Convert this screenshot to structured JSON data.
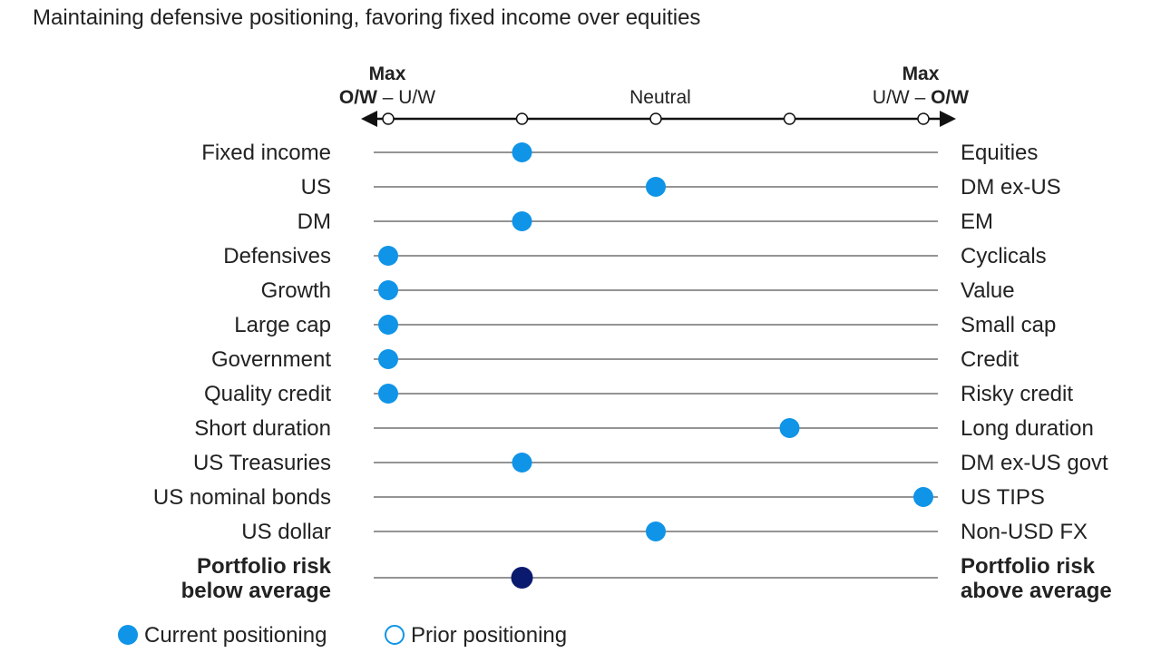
{
  "title": "Maintaining defensive positioning, favoring fixed income over equities",
  "colors": {
    "current": "#0f94e8",
    "current_highlight": "#0a1a6e",
    "prior_fill": "#ffffff",
    "line": "#555555",
    "axis": "#111111",
    "text": "#222222"
  },
  "scale": {
    "left_max": "Max",
    "left_ow": "O/W",
    "left_dash": " – ",
    "left_uw": "U/W",
    "neutral": "Neutral",
    "right_max": "Max",
    "right_uw": "U/W",
    "right_dash": " – ",
    "right_ow": "O/W"
  },
  "legend": {
    "current": "Current positioning",
    "prior": "Prior positioning"
  },
  "chart_data": {
    "type": "scatter",
    "title": "Maintaining defensive positioning, favoring fixed income over equities",
    "scale_positions": [
      1,
      2,
      3,
      4,
      5
    ],
    "scale_description": "1 = Max O/W left asset, 3 = Neutral, 5 = Max O/W right asset",
    "rows": [
      {
        "left": "Fixed income",
        "right": "Equities",
        "current": 2,
        "highlight": false
      },
      {
        "left": "US",
        "right": "DM ex-US",
        "current": 3,
        "highlight": false
      },
      {
        "left": "DM",
        "right": "EM",
        "current": 2,
        "highlight": false
      },
      {
        "left": "Defensives",
        "right": "Cyclicals",
        "current": 1,
        "highlight": false
      },
      {
        "left": "Growth",
        "right": "Value",
        "current": 1,
        "highlight": false
      },
      {
        "left": "Large cap",
        "right": "Small cap",
        "current": 1,
        "highlight": false
      },
      {
        "left": "Government",
        "right": "Credit",
        "current": 1,
        "highlight": false
      },
      {
        "left": "Quality credit",
        "right": "Risky credit",
        "current": 1,
        "highlight": false
      },
      {
        "left": "Short duration",
        "right": "Long duration",
        "current": 4,
        "highlight": false
      },
      {
        "left": "US Treasuries",
        "right": "DM ex-US govt",
        "current": 2,
        "highlight": false
      },
      {
        "left": "US nominal bonds",
        "right": "US TIPS",
        "current": 5,
        "highlight": false
      },
      {
        "left": "US dollar",
        "right": "Non-USD FX",
        "current": 3,
        "highlight": false
      },
      {
        "left": "Portfolio risk\nbelow average",
        "right": "Portfolio risk\nabove average",
        "current": 2,
        "highlight": true
      }
    ],
    "legend": [
      "Current positioning",
      "Prior positioning"
    ]
  }
}
